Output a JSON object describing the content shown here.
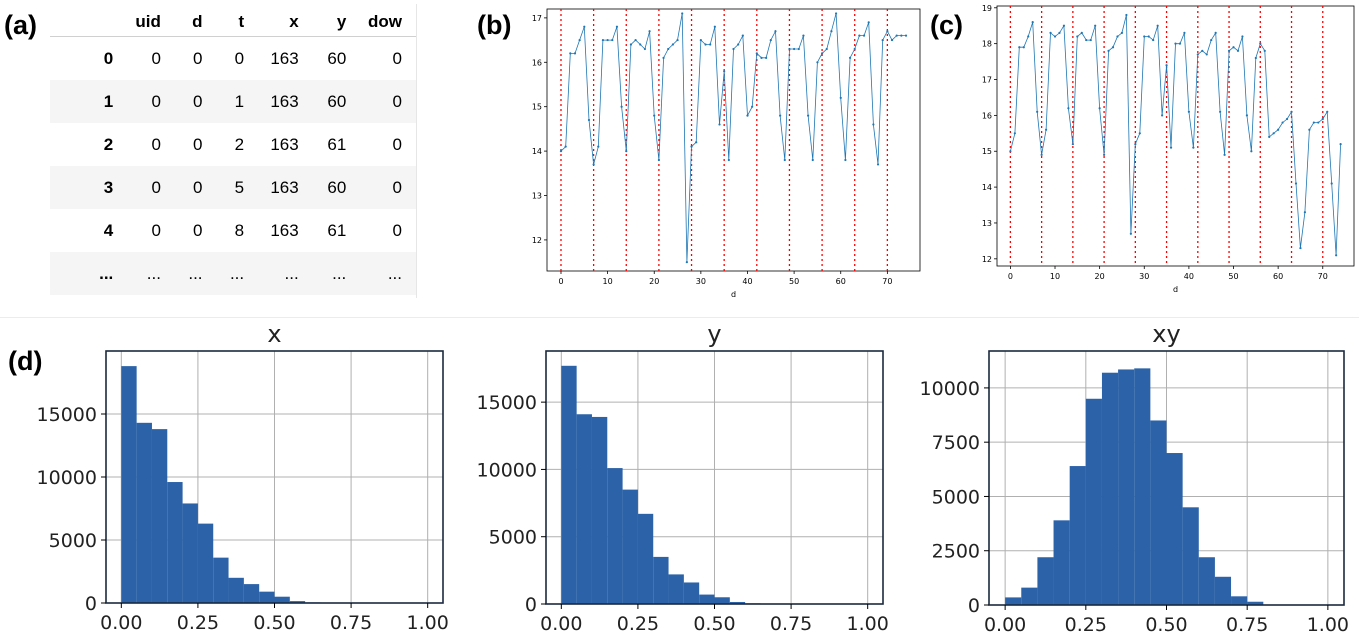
{
  "panel_labels": {
    "a": "(a)",
    "b": "(b)",
    "c": "(c)",
    "d": "(d)"
  },
  "table": {
    "columns": [
      "",
      "uid",
      "d",
      "t",
      "x",
      "y",
      "dow"
    ],
    "rows": [
      [
        "0",
        "0",
        "0",
        "0",
        "163",
        "60",
        "0"
      ],
      [
        "1",
        "0",
        "0",
        "1",
        "163",
        "60",
        "0"
      ],
      [
        "2",
        "0",
        "0",
        "2",
        "163",
        "61",
        "0"
      ],
      [
        "3",
        "0",
        "0",
        "5",
        "163",
        "60",
        "0"
      ],
      [
        "4",
        "0",
        "0",
        "8",
        "163",
        "61",
        "0"
      ],
      [
        "...",
        "...",
        "...",
        "...",
        "...",
        "...",
        "..."
      ]
    ]
  },
  "colors": {
    "line": "#1f77b4",
    "vline": "#ff0000",
    "bar": "#2b62a8",
    "grid": "#b0b0b0"
  },
  "chart_data": [
    {
      "id": "b",
      "type": "line",
      "xlabel": "d",
      "ylabel": "",
      "xlim": [
        -3,
        77
      ],
      "ylim": [
        11.3,
        17.2
      ],
      "xticks": [
        0,
        10,
        20,
        30,
        40,
        50,
        60,
        70
      ],
      "yticks": [
        12,
        13,
        14,
        15,
        16,
        17
      ],
      "vlines": [
        0,
        7,
        14,
        21,
        28,
        35,
        42,
        49,
        56,
        63,
        70
      ],
      "x": [
        0,
        1,
        2,
        3,
        4,
        5,
        6,
        7,
        8,
        9,
        10,
        11,
        12,
        13,
        14,
        15,
        16,
        17,
        18,
        19,
        20,
        21,
        22,
        23,
        24,
        25,
        26,
        27,
        28,
        29,
        30,
        31,
        32,
        33,
        34,
        35,
        36,
        37,
        38,
        39,
        40,
        41,
        42,
        43,
        44,
        45,
        46,
        47,
        48,
        49,
        50,
        51,
        52,
        53,
        54,
        55,
        56,
        57,
        58,
        59,
        60,
        61,
        62,
        63,
        64,
        65,
        66,
        67,
        68,
        69,
        70,
        71,
        72,
        73,
        74
      ],
      "y": [
        14.0,
        14.1,
        16.2,
        16.2,
        16.5,
        16.8,
        14.7,
        13.7,
        14.1,
        16.5,
        16.5,
        16.5,
        16.8,
        15.0,
        14.0,
        16.4,
        16.5,
        16.4,
        16.3,
        16.7,
        14.8,
        13.8,
        16.1,
        16.3,
        16.4,
        16.5,
        17.1,
        11.5,
        14.1,
        14.2,
        16.5,
        16.4,
        16.4,
        16.8,
        14.6,
        15.8,
        13.8,
        16.3,
        16.4,
        16.6,
        14.8,
        15.0,
        16.2,
        16.1,
        16.1,
        16.5,
        16.7,
        14.8,
        13.8,
        16.3,
        16.3,
        16.3,
        16.6,
        14.8,
        13.8,
        16.0,
        16.2,
        16.3,
        16.7,
        17.1,
        15.2,
        13.8,
        16.1,
        16.3,
        16.6,
        16.6,
        16.9,
        14.6,
        13.7,
        16.5,
        16.7,
        16.5,
        16.6,
        16.6,
        16.6
      ]
    },
    {
      "id": "c",
      "type": "line",
      "xlabel": "d",
      "ylabel": "",
      "xlim": [
        -3,
        77
      ],
      "ylim": [
        11.8,
        19.05
      ],
      "xticks": [
        0,
        10,
        20,
        30,
        40,
        50,
        60,
        70
      ],
      "yticks": [
        12,
        13,
        14,
        15,
        16,
        17,
        18,
        19
      ],
      "vlines": [
        0,
        7,
        14,
        21,
        28,
        35,
        42,
        49,
        56,
        63,
        70
      ],
      "x": [
        0,
        1,
        2,
        3,
        4,
        5,
        6,
        7,
        8,
        9,
        10,
        11,
        12,
        13,
        14,
        15,
        16,
        17,
        18,
        19,
        20,
        21,
        22,
        23,
        24,
        25,
        26,
        27,
        28,
        29,
        30,
        31,
        32,
        33,
        34,
        35,
        36,
        37,
        38,
        39,
        40,
        41,
        42,
        43,
        44,
        45,
        46,
        47,
        48,
        49,
        50,
        51,
        52,
        53,
        54,
        55,
        56,
        57,
        58,
        59,
        60,
        61,
        62,
        63,
        64,
        65,
        66,
        67,
        68,
        69,
        70,
        71,
        72,
        73,
        74
      ],
      "y": [
        15.0,
        15.5,
        17.9,
        17.9,
        18.2,
        18.6,
        16.1,
        14.9,
        15.6,
        18.3,
        18.2,
        18.3,
        18.5,
        16.2,
        15.2,
        18.2,
        18.3,
        18.1,
        18.1,
        18.5,
        16.2,
        14.9,
        17.8,
        17.9,
        18.2,
        18.3,
        18.8,
        12.7,
        15.2,
        15.5,
        18.2,
        18.2,
        18.1,
        18.5,
        16.0,
        17.4,
        15.1,
        18.0,
        18.0,
        18.3,
        16.1,
        15.1,
        17.7,
        17.8,
        17.7,
        18.1,
        18.3,
        16.1,
        14.9,
        17.8,
        17.9,
        17.8,
        18.2,
        16.0,
        15.0,
        17.6,
        18.0,
        17.8,
        15.4,
        15.5,
        15.6,
        15.8,
        15.9,
        16.1,
        14.1,
        12.3,
        13.3,
        15.6,
        15.8,
        15.8,
        15.9,
        16.1,
        14.1,
        12.1,
        15.2
      ]
    },
    {
      "id": "d-x",
      "type": "bar",
      "title": "x",
      "xlim": [
        -0.05,
        1.05
      ],
      "ylim": [
        0,
        20000
      ],
      "xticks": [
        0.0,
        0.25,
        0.5,
        0.75,
        1.0
      ],
      "xtick_labels": [
        "0.00",
        "0.25",
        "0.50",
        "0.75",
        "1.00"
      ],
      "yticks": [
        0,
        5000,
        10000,
        15000
      ],
      "bin_width": 0.05,
      "bin_starts": [
        0.0,
        0.05,
        0.1,
        0.15,
        0.2,
        0.25,
        0.3,
        0.35,
        0.4,
        0.45,
        0.5,
        0.55,
        0.6,
        0.65,
        0.7,
        0.75,
        0.8,
        0.85,
        0.9,
        0.95
      ],
      "values": [
        18800,
        14300,
        13800,
        9600,
        7900,
        6300,
        3600,
        2000,
        1500,
        900,
        500,
        150,
        50,
        30,
        20,
        10,
        10,
        5,
        5,
        5
      ]
    },
    {
      "id": "d-y",
      "type": "bar",
      "title": "y",
      "xlim": [
        -0.05,
        1.05
      ],
      "ylim": [
        0,
        18800
      ],
      "xticks": [
        0.0,
        0.25,
        0.5,
        0.75,
        1.0
      ],
      "xtick_labels": [
        "0.00",
        "0.25",
        "0.50",
        "0.75",
        "1.00"
      ],
      "yticks": [
        0,
        5000,
        10000,
        15000
      ],
      "bin_width": 0.05,
      "bin_starts": [
        0.0,
        0.05,
        0.1,
        0.15,
        0.2,
        0.25,
        0.3,
        0.35,
        0.4,
        0.45,
        0.5,
        0.55,
        0.6,
        0.65,
        0.7,
        0.75,
        0.8,
        0.85,
        0.9,
        0.95
      ],
      "values": [
        17700,
        14100,
        13900,
        10100,
        8500,
        6700,
        3500,
        2200,
        1600,
        700,
        500,
        150,
        50,
        30,
        20,
        10,
        10,
        5,
        5,
        5
      ]
    },
    {
      "id": "d-xy",
      "type": "bar",
      "title": "xy",
      "xlim": [
        -0.05,
        1.05
      ],
      "ylim": [
        0,
        11700
      ],
      "xticks": [
        0.0,
        0.25,
        0.5,
        0.75,
        1.0
      ],
      "xtick_labels": [
        "0.00",
        "0.25",
        "0.50",
        "0.75",
        "1.00"
      ],
      "yticks": [
        0,
        2500,
        5000,
        7500,
        10000
      ],
      "bin_width": 0.05,
      "bin_starts": [
        0.0,
        0.05,
        0.1,
        0.15,
        0.2,
        0.25,
        0.3,
        0.35,
        0.4,
        0.45,
        0.5,
        0.55,
        0.6,
        0.65,
        0.7,
        0.75,
        0.8,
        0.85,
        0.9,
        0.95
      ],
      "values": [
        350,
        800,
        2200,
        3900,
        6400,
        9500,
        10700,
        10850,
        10900,
        8500,
        7000,
        4500,
        2200,
        1300,
        400,
        150,
        20,
        10,
        5,
        5
      ]
    }
  ]
}
